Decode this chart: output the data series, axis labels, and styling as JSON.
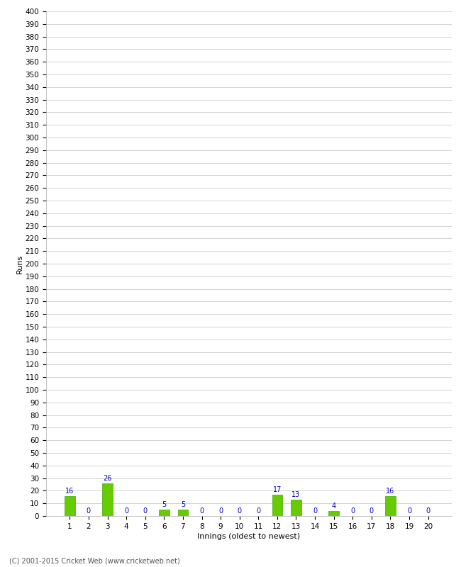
{
  "title": "",
  "xlabel": "Innings (oldest to newest)",
  "ylabel": "Runs",
  "categories": [
    1,
    2,
    3,
    4,
    5,
    6,
    7,
    8,
    9,
    10,
    11,
    12,
    13,
    14,
    15,
    16,
    17,
    18,
    19,
    20
  ],
  "values": [
    16,
    0,
    26,
    0,
    0,
    5,
    5,
    0,
    0,
    0,
    0,
    17,
    13,
    0,
    4,
    0,
    0,
    16,
    0,
    0
  ],
  "bar_color": "#66cc00",
  "bar_edge_color": "#44aa00",
  "label_color": "#0000cc",
  "background_color": "#ffffff",
  "grid_color": "#cccccc",
  "ylim": [
    0,
    400
  ],
  "yticks": [
    0,
    10,
    20,
    30,
    40,
    50,
    60,
    70,
    80,
    90,
    100,
    110,
    120,
    130,
    140,
    150,
    160,
    170,
    180,
    190,
    200,
    210,
    220,
    230,
    240,
    250,
    260,
    270,
    280,
    290,
    300,
    310,
    320,
    330,
    340,
    350,
    360,
    370,
    380,
    390,
    400
  ],
  "footer": "(C) 2001-2015 Cricket Web (www.cricketweb.net)",
  "footer_color": "#555555",
  "label_fontsize": 7,
  "axis_tick_fontsize": 7.5,
  "axis_label_fontsize": 8
}
